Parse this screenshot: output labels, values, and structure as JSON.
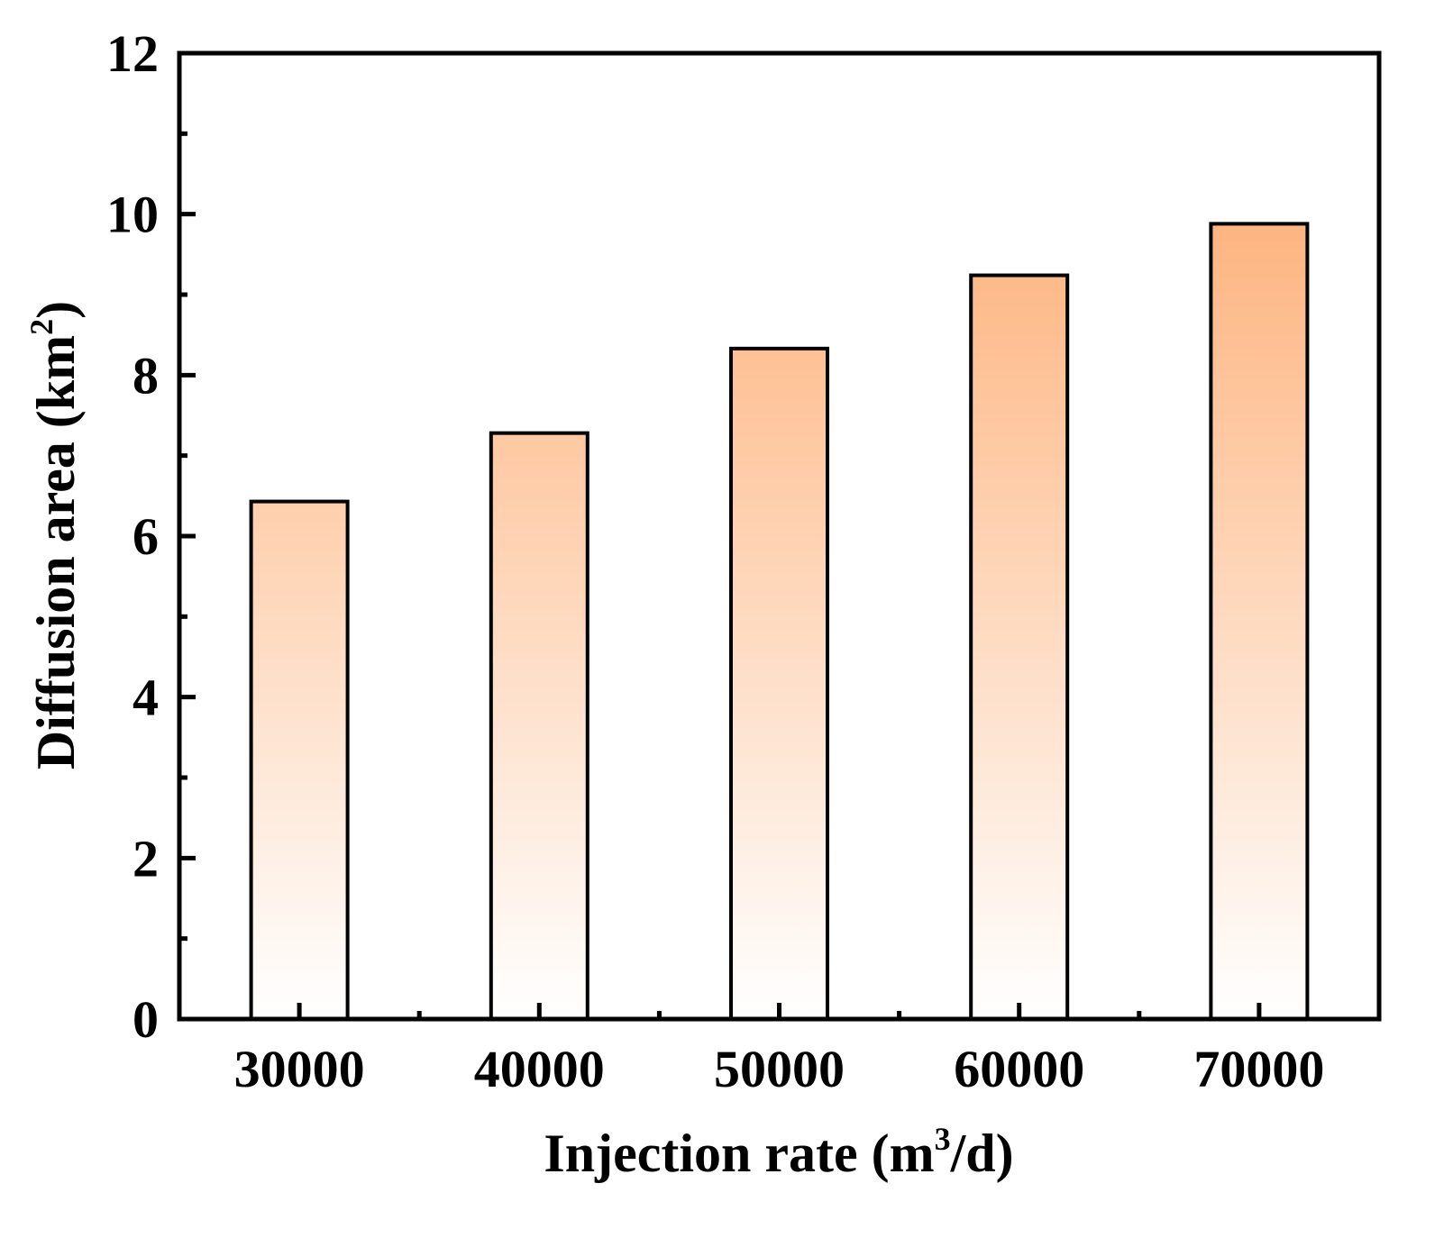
{
  "chart_data": {
    "type": "bar",
    "title": "",
    "xlabel": "Injection rate (m",
    "xlabel_sup": "3",
    "xlabel_tail": "/d)",
    "ylabel": "Diffusion area (km",
    "ylabel_sup": "2",
    "ylabel_tail": ")",
    "categories": [
      "30000",
      "40000",
      "50000",
      "60000",
      "70000"
    ],
    "values": [
      6.43,
      7.28,
      8.33,
      9.24,
      9.88
    ],
    "ylim": [
      0,
      12
    ],
    "yticks": [
      "0",
      "2",
      "4",
      "6",
      "8",
      "10",
      "12"
    ],
    "grid": false,
    "legend": "none",
    "bar_color_top": "#FDB47F",
    "bar_color_bottom": "#FFFFFF"
  }
}
